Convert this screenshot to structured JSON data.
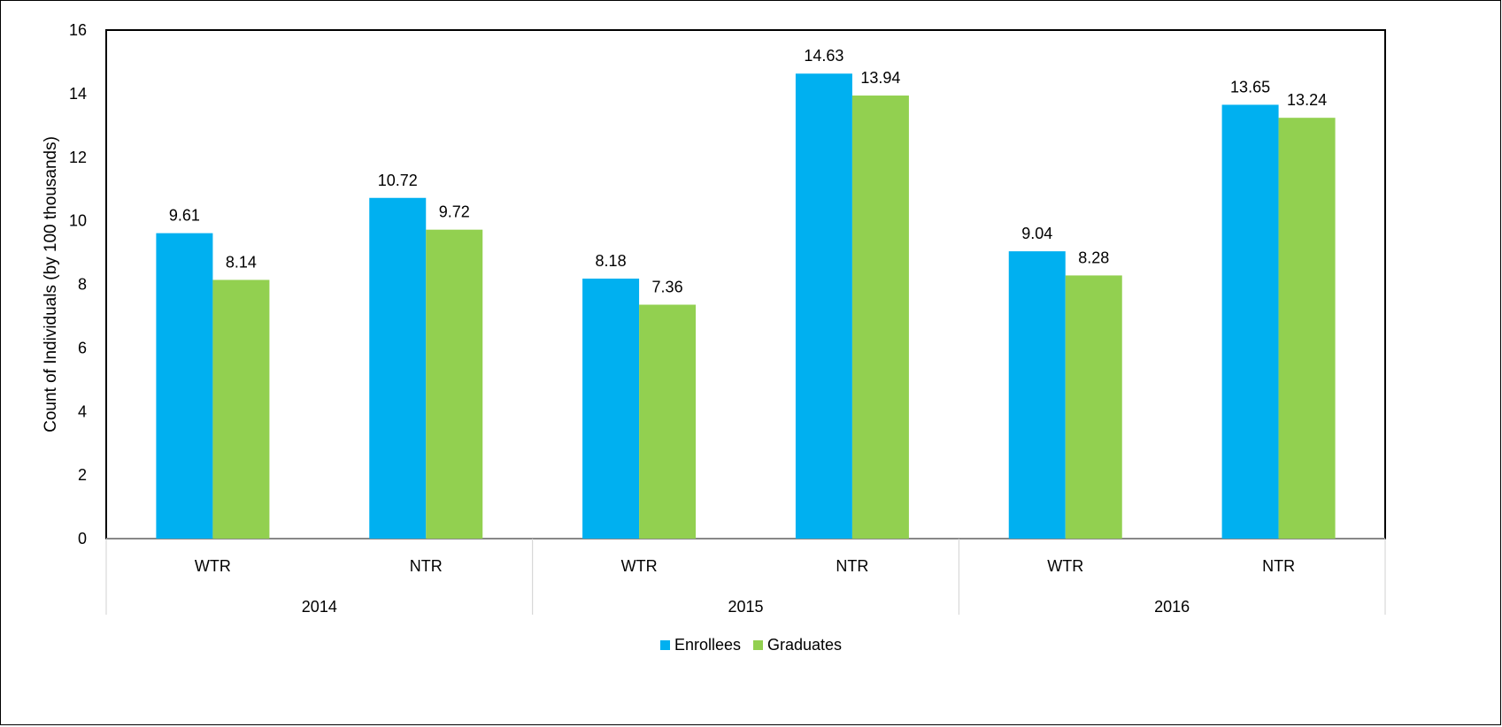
{
  "chart_data": {
    "type": "bar",
    "title": "",
    "ylabel": "Count of Individuals (by 100 thousands)",
    "xlabel": "",
    "ylim": [
      0,
      16
    ],
    "yticks": [
      0,
      2,
      4,
      6,
      8,
      10,
      12,
      14,
      16
    ],
    "categories": [
      "WTR",
      "NTR",
      "WTR",
      "NTR",
      "WTR",
      "NTR"
    ],
    "groups": [
      {
        "label": "2014",
        "span": 2
      },
      {
        "label": "2015",
        "span": 2
      },
      {
        "label": "2016",
        "span": 2
      }
    ],
    "series": [
      {
        "name": "Enrollees",
        "color": "#00B0F0",
        "values": [
          9.61,
          10.72,
          8.18,
          14.63,
          9.04,
          13.65
        ],
        "labels": [
          "9.61",
          "10.72",
          "8.18",
          "14.63",
          "9.04",
          "13.65"
        ]
      },
      {
        "name": "Graduates",
        "color": "#92D050",
        "values": [
          8.14,
          9.72,
          7.36,
          13.94,
          8.28,
          13.24
        ],
        "labels": [
          "8.14",
          "9.72",
          "7.36",
          "13.94",
          "8.28",
          "13.24"
        ]
      }
    ],
    "grid": false,
    "legend_position": "bottom"
  }
}
